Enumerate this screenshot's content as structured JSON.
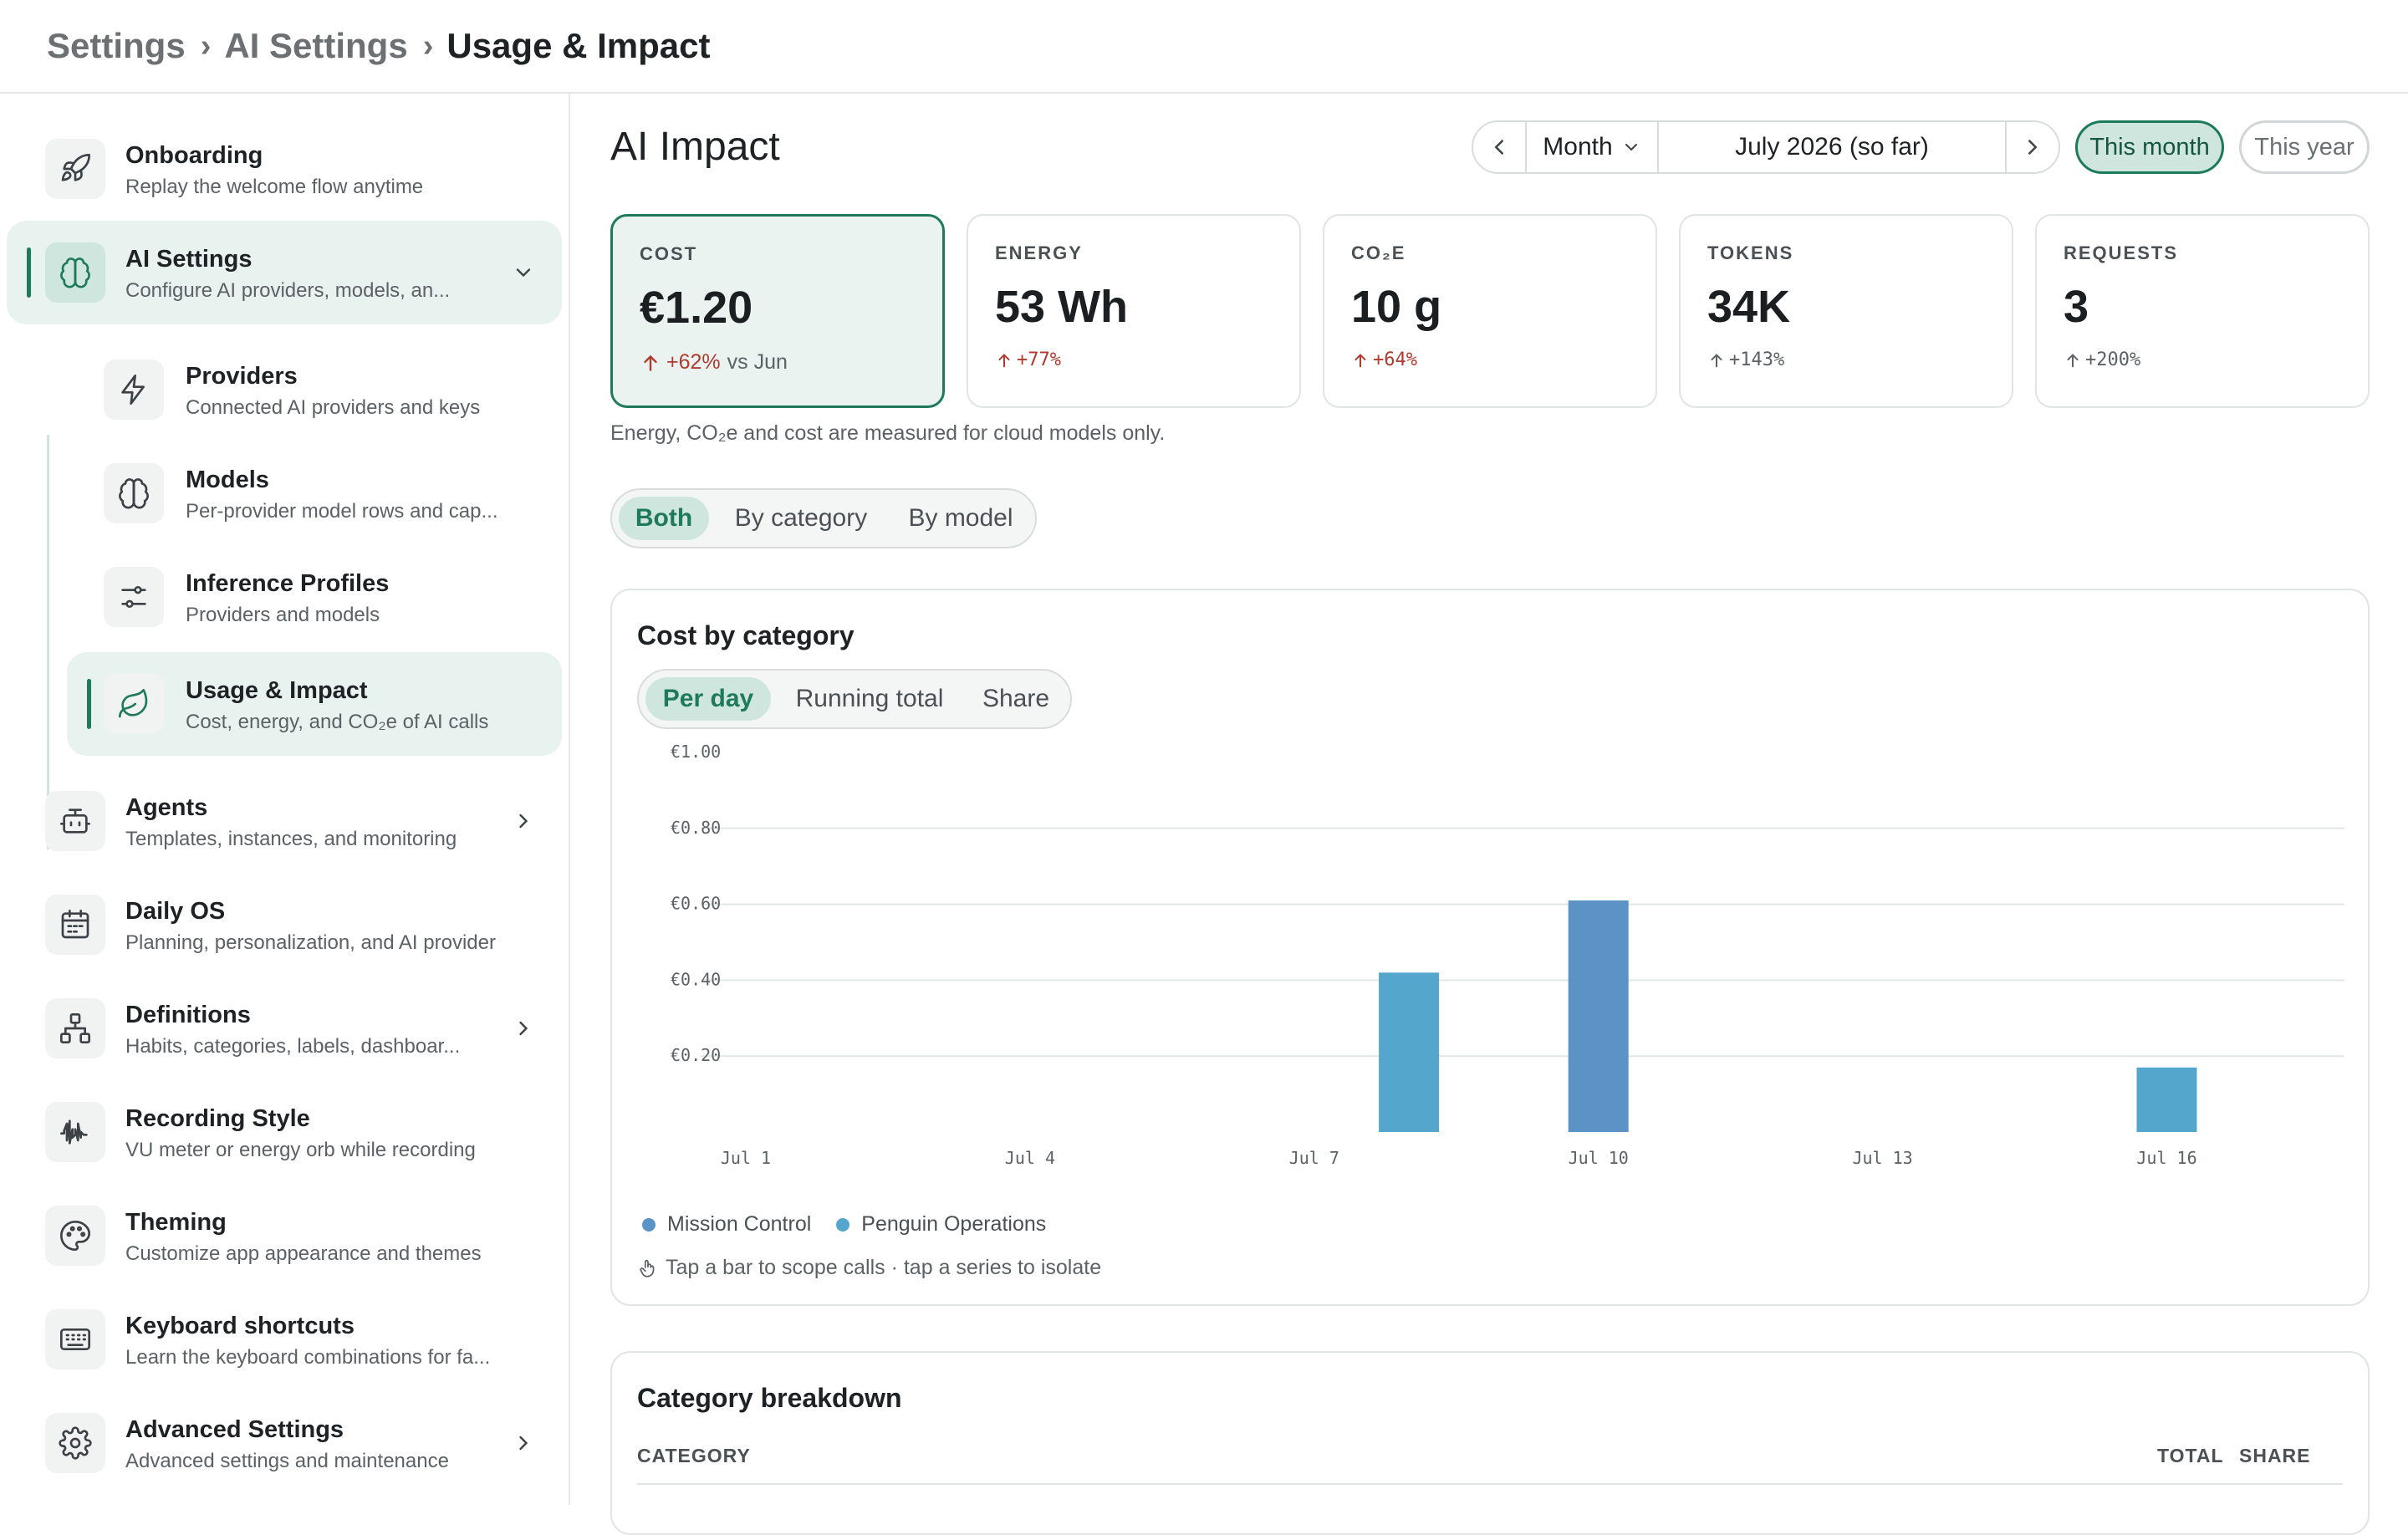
{
  "breadcrumb": {
    "items": [
      "Settings",
      "AI Settings",
      "Usage & Impact"
    ],
    "separator": "›"
  },
  "sidebar": {
    "items": [
      {
        "title": "Onboarding",
        "subtitle": "Replay the welcome flow anytime",
        "icon": "rocket-icon"
      },
      {
        "title": "AI Settings",
        "subtitle": "Configure AI providers, models, an...",
        "icon": "brain-icon"
      },
      {
        "title": "Agents",
        "subtitle": "Templates, instances, and monitoring",
        "icon": "robot-icon"
      },
      {
        "title": "Daily OS",
        "subtitle": "Planning, personalization, and AI provider",
        "icon": "calendar-icon"
      },
      {
        "title": "Definitions",
        "subtitle": "Habits, categories, labels, dashboar...",
        "icon": "hierarchy-icon"
      },
      {
        "title": "Recording Style",
        "subtitle": "VU meter or energy orb while recording",
        "icon": "waveform-icon"
      },
      {
        "title": "Theming",
        "subtitle": "Customize app appearance and themes",
        "icon": "palette-icon"
      },
      {
        "title": "Keyboard shortcuts",
        "subtitle": "Learn the keyboard combinations for fa...",
        "icon": "keyboard-icon"
      },
      {
        "title": "Advanced Settings",
        "subtitle": "Advanced settings and maintenance",
        "icon": "gear-icon"
      }
    ],
    "sub_items": [
      {
        "title": "Providers",
        "subtitle": "Connected AI providers and keys",
        "icon": "bolt-icon"
      },
      {
        "title": "Models",
        "subtitle": "Per-provider model rows and cap...",
        "icon": "brain-icon"
      },
      {
        "title": "Inference Profiles",
        "subtitle": "Providers and models",
        "icon": "sliders-icon"
      },
      {
        "title": "Usage & Impact",
        "subtitle": "Cost, energy, and CO₂e of AI calls",
        "icon": "leaf-icon"
      }
    ]
  },
  "main": {
    "title": "AI Impact",
    "period": {
      "unit": "Month",
      "label": "July 2026 (so far)"
    },
    "quick": {
      "this_month": "This month",
      "this_year": "This year"
    },
    "cards": [
      {
        "label": "COST",
        "value": "€1.20",
        "delta": "+62%",
        "vs": "vs Jun"
      },
      {
        "label": "ENERGY",
        "value": "53 Wh",
        "delta": "+77%"
      },
      {
        "label": "CO₂E",
        "value": "10 g",
        "delta": "+64%"
      },
      {
        "label": "TOKENS",
        "value": "34K",
        "delta": "+143%"
      },
      {
        "label": "REQUESTS",
        "value": "3",
        "delta": "+200%"
      }
    ],
    "note": "Energy, CO₂e and cost are measured for cloud models only.",
    "view_toggle": [
      "Both",
      "By category",
      "By model"
    ],
    "cost_panel": {
      "title": "Cost by category",
      "toggle": [
        "Per day",
        "Running total",
        "Share"
      ],
      "hint": "Tap a bar to scope calls · tap a series to isolate"
    },
    "breakdown": {
      "title": "Category breakdown",
      "headers": {
        "category": "CATEGORY",
        "total": "TOTAL",
        "share": "SHARE"
      }
    }
  },
  "colors": {
    "accent": "#1f7a5c",
    "series_mission": "#5b93c7",
    "series_penguin": "#55a6cc",
    "delta_up": "#b03a2e"
  },
  "chart_data": {
    "type": "bar",
    "title": "Cost by category",
    "x": [
      "Jul 1",
      "Jul 2",
      "Jul 3",
      "Jul 4",
      "Jul 5",
      "Jul 6",
      "Jul 7",
      "Jul 8",
      "Jul 9",
      "Jul 10",
      "Jul 11",
      "Jul 12",
      "Jul 13",
      "Jul 14",
      "Jul 15",
      "Jul 16",
      "Jul 17"
    ],
    "x_tick_labels": [
      "Jul 1",
      "Jul 4",
      "Jul 7",
      "Jul 10",
      "Jul 13",
      "Jul 16"
    ],
    "y_tick_labels": [
      "€0.20",
      "€0.40",
      "€0.60",
      "€0.80",
      "€1.00"
    ],
    "ylim": [
      0,
      1.0
    ],
    "grid": true,
    "series": [
      {
        "name": "Mission Control",
        "color": "#5b93c7",
        "values": [
          0,
          0,
          0,
          0,
          0,
          0,
          0,
          0,
          0,
          0.61,
          0,
          0,
          0,
          0,
          0,
          0,
          0
        ]
      },
      {
        "name": "Penguin Operations",
        "color": "#55a6cc",
        "values": [
          0,
          0,
          0,
          0,
          0,
          0,
          0,
          0.42,
          0,
          0,
          0,
          0,
          0,
          0,
          0,
          0.17,
          0
        ]
      }
    ],
    "legend": "bottom-left"
  }
}
